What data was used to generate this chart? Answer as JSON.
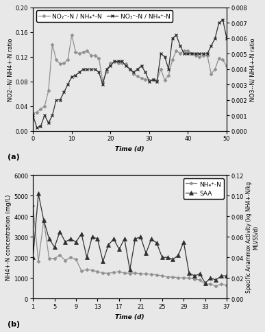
{
  "panel_a": {
    "xlabel": "Time (d)",
    "ylabel_left": "NO2--N/ NH4+-N ratio",
    "ylabel_right": "NO3--N/ NH4+-N ratio",
    "legend1": "NO2--N / NH4+-N",
    "legend2": "NO3--N / NH4+-N",
    "xlim": [
      0,
      50
    ],
    "ylim_left": [
      0,
      0.2
    ],
    "ylim_right": [
      0,
      0.008
    ],
    "xticks": [
      0,
      10,
      20,
      30,
      40,
      50
    ],
    "yticks_left": [
      0,
      0.04,
      0.08,
      0.12,
      0.16,
      0.2
    ],
    "yticks_right": [
      0,
      0.001,
      0.002,
      0.003,
      0.004,
      0.005,
      0.006,
      0.007,
      0.008
    ],
    "no2_x": [
      0,
      1,
      2,
      3,
      4,
      5,
      6,
      7,
      8,
      9,
      10,
      11,
      12,
      13,
      14,
      15,
      16,
      17,
      18,
      19,
      20,
      21,
      22,
      23,
      24,
      25,
      26,
      27,
      28,
      29,
      30,
      31,
      32,
      33,
      34,
      35,
      36,
      37,
      38,
      39,
      40,
      41,
      42,
      43,
      44,
      45,
      46,
      47,
      48,
      49,
      50
    ],
    "no2_y": [
      0.028,
      0.03,
      0.035,
      0.04,
      0.065,
      0.14,
      0.115,
      0.108,
      0.11,
      0.115,
      0.155,
      0.128,
      0.125,
      0.128,
      0.13,
      0.122,
      0.122,
      0.118,
      0.08,
      0.095,
      0.11,
      0.112,
      0.11,
      0.11,
      0.108,
      0.1,
      0.092,
      0.088,
      0.085,
      0.083,
      0.082,
      0.083,
      0.082,
      0.1,
      0.082,
      0.09,
      0.115,
      0.13,
      0.125,
      0.13,
      0.13,
      0.125,
      0.122,
      0.12,
      0.122,
      0.122,
      0.092,
      0.1,
      0.118,
      0.115,
      0.105
    ],
    "no3_x": [
      0,
      1,
      2,
      3,
      4,
      5,
      6,
      7,
      8,
      9,
      10,
      11,
      12,
      13,
      14,
      15,
      16,
      17,
      18,
      19,
      20,
      21,
      22,
      23,
      24,
      25,
      26,
      27,
      28,
      29,
      30,
      31,
      32,
      33,
      34,
      35,
      36,
      37,
      38,
      39,
      40,
      41,
      42,
      43,
      44,
      45,
      46,
      47,
      48,
      49,
      50
    ],
    "no3_y": [
      0.001,
      0.0002,
      0.0003,
      0.001,
      0.0005,
      0.001,
      0.002,
      0.002,
      0.0025,
      0.003,
      0.0035,
      0.0036,
      0.0038,
      0.004,
      0.004,
      0.004,
      0.004,
      0.0038,
      0.003,
      0.004,
      0.0042,
      0.0045,
      0.0045,
      0.0045,
      0.0042,
      0.004,
      0.0038,
      0.004,
      0.0042,
      0.0038,
      0.0032,
      0.0033,
      0.0032,
      0.005,
      0.0048,
      0.004,
      0.006,
      0.0062,
      0.0055,
      0.005,
      0.005,
      0.005,
      0.005,
      0.005,
      0.005,
      0.005,
      0.0055,
      0.006,
      0.007,
      0.0072,
      0.006
    ]
  },
  "panel_b": {
    "xlabel": "Time (d)",
    "ylabel_left": "NH4+-N concentration (mg/L)",
    "ylabel_right": "Specific Anammox Activity (kg NH4+-N/kg\nMLVSS/d)",
    "legend1": "NH4+-N",
    "legend2": "SAA",
    "xlim": [
      1,
      37
    ],
    "ylim_left": [
      0,
      6000
    ],
    "ylim_right": [
      0,
      0.12
    ],
    "xticks": [
      1,
      5,
      9,
      13,
      17,
      21,
      25,
      29,
      33,
      37
    ],
    "yticks_left": [
      0,
      1000,
      2000,
      3000,
      4000,
      5000,
      6000
    ],
    "yticks_right": [
      0,
      0.02,
      0.04,
      0.06,
      0.08,
      0.1,
      0.12
    ],
    "nh4_x": [
      1,
      2,
      3,
      4,
      5,
      6,
      7,
      8,
      9,
      10,
      11,
      12,
      13,
      14,
      15,
      16,
      17,
      18,
      19,
      20,
      21,
      22,
      23,
      24,
      25,
      26,
      27,
      28,
      29,
      30,
      31,
      32,
      33,
      34,
      35,
      36,
      37
    ],
    "nh4_y": [
      4500,
      1800,
      3800,
      1950,
      1950,
      2100,
      1850,
      2000,
      1900,
      1350,
      1400,
      1380,
      1300,
      1250,
      1220,
      1280,
      1300,
      1250,
      1220,
      1250,
      1200,
      1200,
      1180,
      1150,
      1100,
      1050,
      1050,
      1000,
      1000,
      1000,
      950,
      900,
      700,
      700,
      600,
      700,
      650
    ],
    "saa_x": [
      1,
      2,
      3,
      4,
      5,
      6,
      7,
      8,
      9,
      10,
      11,
      12,
      13,
      14,
      15,
      16,
      17,
      18,
      19,
      20,
      21,
      22,
      23,
      24,
      25,
      26,
      27,
      28,
      29,
      30,
      31,
      32,
      33,
      34,
      35,
      36,
      37
    ],
    "saa_y": [
      0.04,
      0.102,
      0.076,
      0.058,
      0.05,
      0.065,
      0.055,
      0.058,
      0.055,
      0.063,
      0.04,
      0.06,
      0.058,
      0.036,
      0.052,
      0.058,
      0.048,
      0.058,
      0.028,
      0.058,
      0.06,
      0.044,
      0.058,
      0.054,
      0.04,
      0.04,
      0.038,
      0.042,
      0.055,
      0.025,
      0.022,
      0.024,
      0.015,
      0.02,
      0.018,
      0.022,
      0.022
    ]
  },
  "color_gray": "#909090",
  "color_dark": "#303030",
  "bg_color": "#e8e8e8",
  "label_fontsize": 6.5,
  "tick_fontsize": 6,
  "legend_fontsize": 6.5
}
